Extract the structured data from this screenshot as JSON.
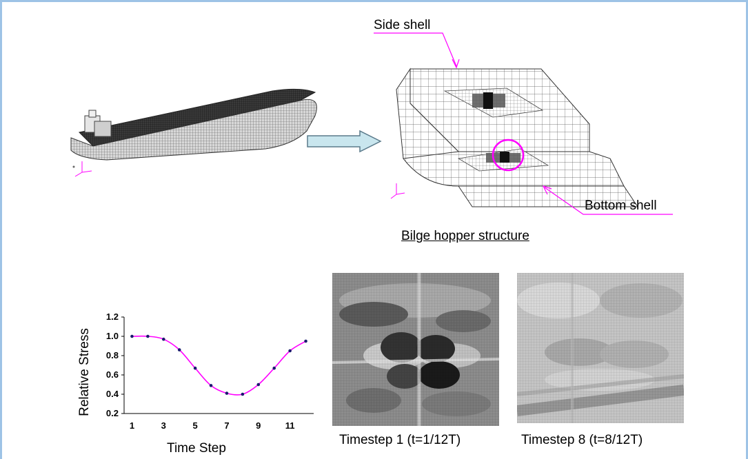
{
  "labels": {
    "side_shell": "Side shell",
    "bottom_shell": "Bottom shell",
    "bilge_hopper": "Bilge hopper structure",
    "timestep1": "Timestep 1 (t=1/12T)",
    "timestep8": "Timestep 8 (t=8/12T)"
  },
  "colors": {
    "accent": "#ff00ff",
    "arrow_fill": "#c9e6ee",
    "arrow_stroke": "#5a7a8a",
    "frame": "#9dc3e6",
    "point": "#1a1a6e"
  },
  "chart_data": {
    "type": "line",
    "xlabel": "Time Step",
    "ylabel": "Relative Stress",
    "x": [
      1,
      2,
      3,
      4,
      5,
      6,
      7,
      8,
      9,
      10,
      11,
      12
    ],
    "values": [
      1.0,
      1.0,
      0.97,
      0.86,
      0.67,
      0.49,
      0.41,
      0.4,
      0.5,
      0.67,
      0.85,
      0.95
    ],
    "xticks": [
      1,
      3,
      5,
      7,
      9,
      11
    ],
    "yticks": [
      0.2,
      0.4,
      0.6,
      0.8,
      1.0,
      1.2
    ],
    "ytick_labels": [
      "0.2",
      "0.4",
      "0.6",
      "0.8",
      "1.0",
      "1.2"
    ],
    "xlim": [
      0.5,
      12.5
    ],
    "ylim": [
      0.2,
      1.2
    ],
    "grid": false
  }
}
